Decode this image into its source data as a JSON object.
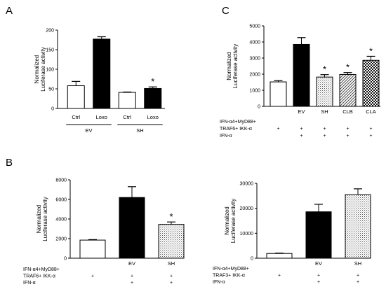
{
  "panel_labels": [
    "A",
    "B",
    "C"
  ],
  "chart_data": [
    {
      "panel": "A",
      "type": "bar",
      "ylabel": "Normalized\nLuciferase activity",
      "ylim": [
        0,
        200
      ],
      "yticks": [
        0,
        50,
        100,
        150,
        200
      ],
      "categories": [
        "Ctrl",
        "Loxo",
        "Ctrl",
        "Loxo"
      ],
      "groups": [
        {
          "label": "EV",
          "span": [
            0,
            1
          ]
        },
        {
          "label": "SH",
          "span": [
            2,
            3
          ]
        }
      ],
      "values": [
        58,
        177,
        41,
        51
      ],
      "errors": [
        11,
        6,
        1,
        4
      ],
      "fills": [
        "white",
        "black",
        "white",
        "black"
      ],
      "significance": [
        "",
        "",
        "",
        "*"
      ]
    },
    {
      "panel": "C",
      "type": "bar",
      "ylabel": "Normalized\nLuciferase activity",
      "ylim": [
        0,
        5000
      ],
      "yticks": [
        0,
        1000,
        2000,
        3000,
        4000,
        5000
      ],
      "categories": [
        "",
        "EV",
        "SH",
        "CLB",
        "CLA"
      ],
      "values": [
        1520,
        3850,
        1820,
        1980,
        2860
      ],
      "errors": [
        80,
        420,
        150,
        120,
        250
      ],
      "fills": [
        "white",
        "black",
        "stipple",
        "hatch",
        "check"
      ],
      "significance": [
        "",
        "",
        "*",
        "*",
        "*"
      ],
      "conditions": [
        {
          "label": "IFN-α4+MyD88+",
          "marks": [
            "",
            "",
            "",
            "",
            ""
          ]
        },
        {
          "label": "TRAF6+ IKK-α",
          "marks": [
            "+",
            "+",
            "+",
            "+",
            "+"
          ]
        },
        {
          "label": "IFN-α",
          "marks": [
            "",
            "+",
            "+",
            "+",
            "+"
          ]
        }
      ]
    },
    {
      "panel": "B",
      "type": "bar",
      "ylabel": "Normalized\nLuciferase activity",
      "ylim": [
        0,
        8000
      ],
      "yticks": [
        0,
        2000,
        4000,
        6000,
        8000
      ],
      "categories": [
        "",
        "EV",
        "SH"
      ],
      "values": [
        1850,
        6200,
        3450
      ],
      "errors": [
        50,
        1100,
        250
      ],
      "fills": [
        "white",
        "black",
        "stipple"
      ],
      "significance": [
        "",
        "",
        "*"
      ],
      "conditions": [
        {
          "label": "IFN-α4+MyD88+",
          "marks": [
            "",
            "",
            ""
          ]
        },
        {
          "label": "TRAF6+ IKK-α",
          "marks": [
            "+",
            "+",
            "+"
          ]
        },
        {
          "label": "IFN-α",
          "marks": [
            "",
            "+",
            "+"
          ]
        }
      ]
    },
    {
      "panel": "",
      "type": "bar",
      "ylabel": "Normalized\nLuciferase activity",
      "ylim": [
        0,
        30000
      ],
      "yticks": [
        0,
        10000,
        20000,
        30000
      ],
      "categories": [
        "",
        "EV",
        "SH"
      ],
      "values": [
        1900,
        18600,
        25500
      ],
      "errors": [
        150,
        3000,
        2300
      ],
      "fills": [
        "white",
        "black",
        "stipple"
      ],
      "significance": [
        "",
        "",
        ""
      ],
      "conditions": [
        {
          "label": "IFN-α4+MyD88+",
          "marks": [
            "",
            "",
            ""
          ]
        },
        {
          "label": "TRAF3+ IKK-α",
          "marks": [
            "+",
            "+",
            "+"
          ]
        },
        {
          "label": "IFN-α",
          "marks": [
            "",
            "+",
            "+"
          ]
        }
      ]
    }
  ]
}
